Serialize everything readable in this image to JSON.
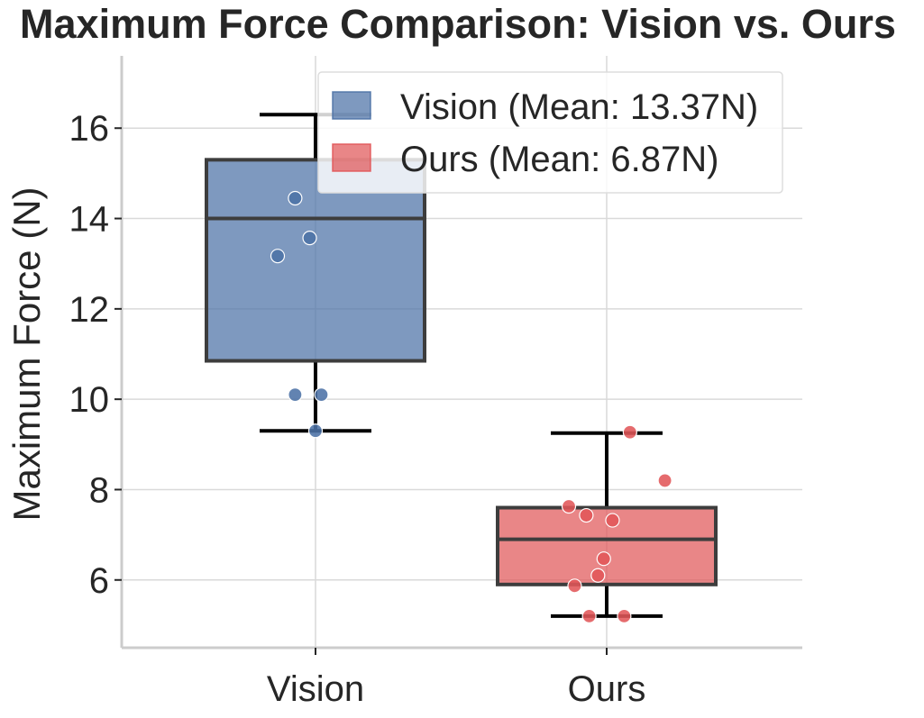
{
  "chart_data": {
    "type": "box",
    "title": "Maximum Force Comparison: Vision vs. Ours",
    "xlabel": "",
    "ylabel": "Maximum Force (N)",
    "ylim": [
      4.5,
      17.6
    ],
    "yticks": [
      6,
      8,
      10,
      12,
      14,
      16
    ],
    "grid": true,
    "legend_position": "top-right",
    "categories": [
      "Vision",
      "Ours"
    ],
    "series": [
      {
        "name": "Vision",
        "legend_label": "Vision (Mean: 13.37N)",
        "color": "#4c72a6",
        "box": {
          "whisker_low": 9.3,
          "q1": 10.85,
          "median": 14.0,
          "q3": 15.3,
          "whisker_high": 16.3
        },
        "points": [
          {
            "jitter": -0.07,
            "value": 14.45
          },
          {
            "jitter": -0.13,
            "value": 13.17
          },
          {
            "jitter": -0.02,
            "value": 13.57
          },
          {
            "jitter": -0.07,
            "value": 10.1
          },
          {
            "jitter": 0.02,
            "value": 10.1
          },
          {
            "jitter": 0.0,
            "value": 9.3
          }
        ]
      },
      {
        "name": "Ours",
        "legend_label": "Ours (Mean: 6.87N)",
        "color": "#e15759",
        "box": {
          "whisker_low": 5.2,
          "q1": 5.9,
          "median": 6.9,
          "q3": 7.6,
          "whisker_high": 9.25
        },
        "points": [
          {
            "jitter": 0.08,
            "value": 9.27
          },
          {
            "jitter": 0.2,
            "value": 8.2
          },
          {
            "jitter": -0.13,
            "value": 7.63
          },
          {
            "jitter": -0.07,
            "value": 7.43
          },
          {
            "jitter": 0.02,
            "value": 7.32
          },
          {
            "jitter": -0.01,
            "value": 6.47
          },
          {
            "jitter": -0.03,
            "value": 6.1
          },
          {
            "jitter": -0.11,
            "value": 5.87
          },
          {
            "jitter": -0.06,
            "value": 5.2
          },
          {
            "jitter": 0.06,
            "value": 5.2
          }
        ]
      }
    ]
  }
}
